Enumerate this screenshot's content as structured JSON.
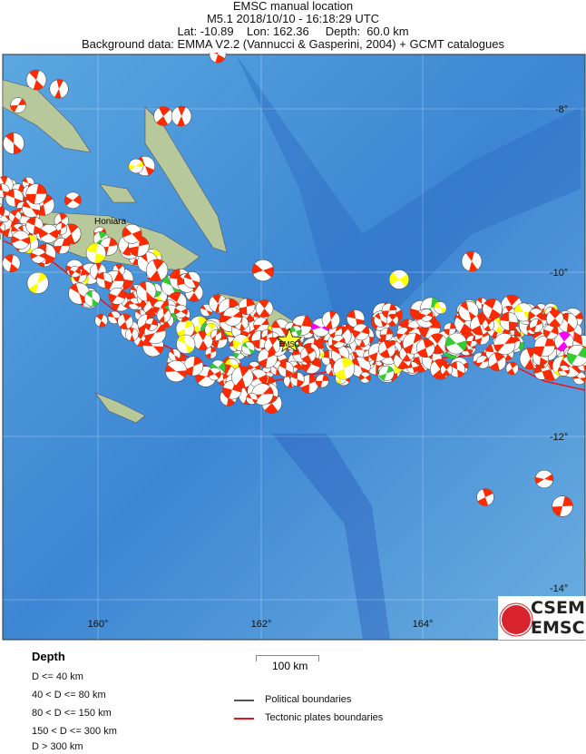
{
  "header": {
    "line1": "EMSC manual location",
    "line2": "M5.1  2018/10/10 - 16:18:29 UTC",
    "line3": "Lat: -10.89    Lon: 162.36     Depth:  60.0 km",
    "line4": "Background data: EMMA V2.2 (Vannucci & Gasperini, 2004) + GCMT catalogues"
  },
  "map": {
    "lon_labels": [
      "160°",
      "162°",
      "164°"
    ],
    "lat_labels": [
      "-8°",
      "-10°",
      "-12°",
      "-14°"
    ],
    "place_label": "Honiara",
    "epicenter_label": "EMSC",
    "epicenter": {
      "lat": -10.89,
      "lon": 162.36
    },
    "colors": {
      "sea": "#3a8fd6",
      "land": "#b8c79a",
      "compression": "#ff2a00",
      "depth_shallow": "#ff2a00",
      "depth_40_80": "#ffff00",
      "depth_80_150": "#33cc33",
      "depth_150_300": "#ff00ff",
      "plate_boundary": "#e8141b",
      "epicenter": "#ffff33"
    }
  },
  "logo": {
    "top": "CSEM",
    "bottom": "EMSC"
  },
  "legend": {
    "depth_title": "Depth",
    "depth_items": [
      "D <= 40 km",
      "40 < D <= 80 km",
      "80 < D <= 150 km",
      "150 < D <= 300 km",
      "D > 300 km"
    ],
    "scale": "100 km",
    "political": "Political boundaries",
    "tectonic": "Tectonic plates boundaries"
  }
}
